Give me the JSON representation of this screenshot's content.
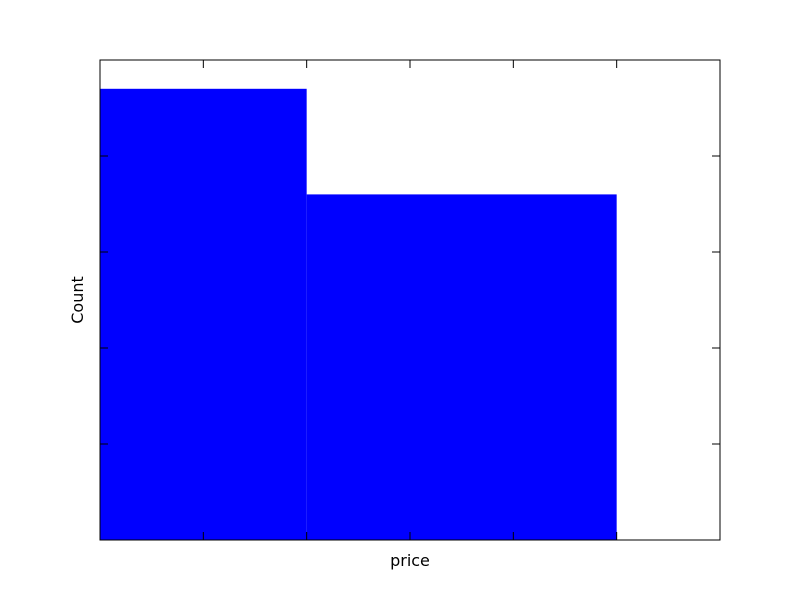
{
  "chart_data": {
    "type": "bar",
    "title": "",
    "xlabel": "price",
    "ylabel": "Count",
    "x_tick_labels_shown": false,
    "y_tick_labels_shown": false,
    "grid": false,
    "legend": "none",
    "bars": [
      {
        "x_start": 0,
        "x_end": 2,
        "value": 94
      },
      {
        "x_start": 2,
        "x_end": 5,
        "value": 72
      }
    ],
    "xlim": [
      0,
      6
    ],
    "ylim": [
      0,
      100
    ],
    "bar_color": "#0000ff"
  }
}
